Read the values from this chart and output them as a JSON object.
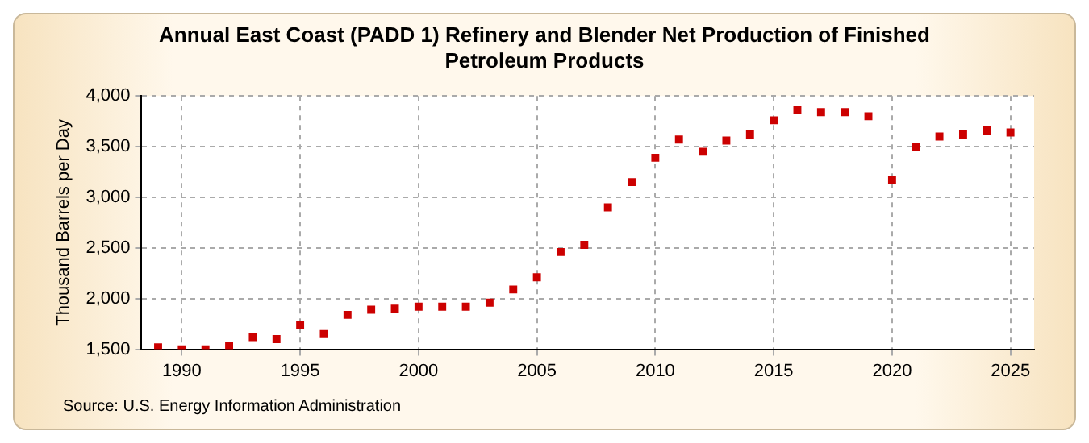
{
  "chart_data": {
    "type": "scatter",
    "title": "Annual East Coast (PADD 1) Refinery and Blender Net Production of Finished Petroleum Products",
    "ylabel": "Thousand Barrels per Day",
    "annotations": [
      "Source: U.S. Energy Information Administration"
    ],
    "x": [
      1989,
      1990,
      1991,
      1992,
      1993,
      1994,
      1995,
      1996,
      1997,
      1998,
      1999,
      2000,
      2001,
      2002,
      2003,
      2004,
      2005,
      2006,
      2007,
      2008,
      2009,
      2010,
      2011,
      2012,
      2013,
      2014,
      2015,
      2016,
      2017,
      2018,
      2019,
      2020,
      2021,
      2022,
      2023,
      2024,
      2025
    ],
    "series": [
      {
        "color": "#cc0000",
        "values": [
          1520,
          1500,
          1500,
          1530,
          1620,
          1600,
          1740,
          1650,
          1840,
          1890,
          1900,
          1920,
          1920,
          1920,
          1960,
          2090,
          2210,
          2460,
          2530,
          2900,
          3150,
          3390,
          3570,
          3450,
          3560,
          3620,
          3760,
          3860,
          3840,
          3840,
          3800,
          3170,
          3500,
          3600,
          3620,
          3660,
          3640
        ]
      }
    ],
    "xlim": [
      1988.3,
      2026
    ],
    "xticks": [
      1990,
      1995,
      2000,
      2005,
      2010,
      2015,
      2020,
      2025
    ],
    "ylim": [
      1500,
      4000
    ],
    "yticks": [
      {
        "value": 1500,
        "label": "1,500"
      },
      {
        "value": 2000,
        "label": "2,000"
      },
      {
        "value": 2500,
        "label": "2,500"
      },
      {
        "value": 3000,
        "label": "3,000"
      },
      {
        "value": 3500,
        "label": "3,500"
      },
      {
        "value": 4000,
        "label": "4,000"
      }
    ],
    "grid": true,
    "marker": "square",
    "legend": false
  }
}
